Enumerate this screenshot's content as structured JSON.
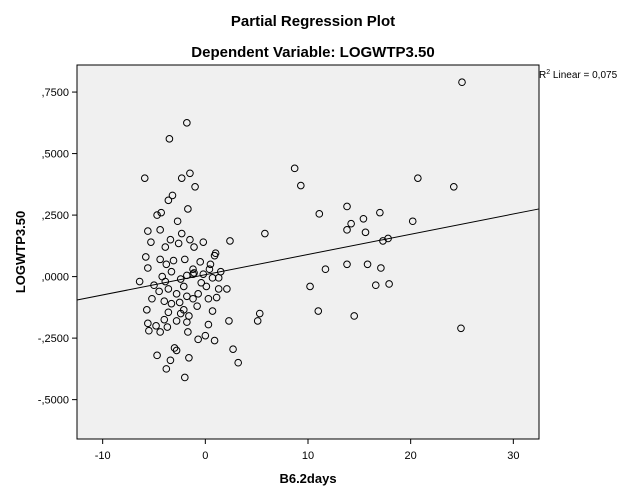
{
  "chart_data": {
    "type": "scatter",
    "title": "Partial Regression Plot",
    "subtitle": "Dependent Variable: LOGWTP3.50",
    "xlabel": "B6.2days",
    "ylabel": "LOGWTP3.50",
    "xlim": [
      -12.5,
      32.5
    ],
    "ylim": [
      -0.66,
      0.86
    ],
    "xticks": [
      -10,
      0,
      10,
      20,
      30
    ],
    "xtick_labels": [
      "-10",
      "0",
      "10",
      "20",
      "30"
    ],
    "yticks": [
      -0.5,
      -0.25,
      0,
      0.25,
      0.5,
      0.75
    ],
    "ytick_labels": [
      "-,5000",
      "-,2500",
      ",0000",
      ",2500",
      ",5000",
      ",7500"
    ],
    "fit_line": {
      "label_prefix": "R",
      "label_sup": "2",
      "label_text": " Linear = 0,075",
      "x": [
        -12.5,
        32.5
      ],
      "y": [
        -0.095,
        0.275
      ]
    },
    "points": [
      [
        25,
        0.79
      ],
      [
        -1.8,
        0.625
      ],
      [
        -3.5,
        0.56
      ],
      [
        20.7,
        0.4
      ],
      [
        24.2,
        0.365
      ],
      [
        8.7,
        0.44
      ],
      [
        9.3,
        0.37
      ],
      [
        -5.9,
        0.4
      ],
      [
        -2.3,
        0.4
      ],
      [
        -1.5,
        0.42
      ],
      [
        -1,
        0.365
      ],
      [
        -3.2,
        0.33
      ],
      [
        -3.6,
        0.31
      ],
      [
        -4.7,
        0.25
      ],
      [
        -1.7,
        0.275
      ],
      [
        13.8,
        0.285
      ],
      [
        11.1,
        0.255
      ],
      [
        15.4,
        0.235
      ],
      [
        17,
        0.26
      ],
      [
        20.2,
        0.225
      ],
      [
        -4.3,
        0.26
      ],
      [
        -2.7,
        0.225
      ],
      [
        -5.6,
        0.185
      ],
      [
        5.8,
        0.175
      ],
      [
        13.8,
        0.19
      ],
      [
        15.6,
        0.18
      ],
      [
        -4.4,
        0.19
      ],
      [
        -2.3,
        0.175
      ],
      [
        -3.4,
        0.15
      ],
      [
        -0.2,
        0.14
      ],
      [
        2.4,
        0.145
      ],
      [
        -5.3,
        0.14
      ],
      [
        17.8,
        0.155
      ],
      [
        17.3,
        0.145
      ],
      [
        14.2,
        0.215
      ],
      [
        -1.5,
        0.15
      ],
      [
        -2.6,
        0.135
      ],
      [
        -3.9,
        0.12
      ],
      [
        -1.1,
        0.12
      ],
      [
        0.9,
        0.085
      ],
      [
        -5.8,
        0.08
      ],
      [
        -4.4,
        0.07
      ],
      [
        -3.1,
        0.065
      ],
      [
        -2,
        0.07
      ],
      [
        -0.5,
        0.06
      ],
      [
        -3.8,
        0.05
      ],
      [
        -5.6,
        0.035
      ],
      [
        -1.2,
        0.03
      ],
      [
        0.4,
        0.03
      ],
      [
        1.5,
        0.02
      ],
      [
        -3.3,
        0.02
      ],
      [
        -4.2,
        0
      ],
      [
        -1.8,
        0.005
      ],
      [
        -0.2,
        0.01
      ],
      [
        0.5,
        0.05
      ],
      [
        -6.4,
        -0.02
      ],
      [
        -5,
        -0.035
      ],
      [
        -3.9,
        -0.02
      ],
      [
        -2.4,
        -0.01
      ],
      [
        -1.2,
        0.01
      ],
      [
        0.7,
        -0.005
      ],
      [
        1.3,
        -0.005
      ],
      [
        11.7,
        0.03
      ],
      [
        13.8,
        0.05
      ],
      [
        15.8,
        0.05
      ],
      [
        17.1,
        0.035
      ],
      [
        10.2,
        -0.04
      ],
      [
        16.6,
        -0.035
      ],
      [
        17.9,
        -0.03
      ],
      [
        -3.6,
        -0.05
      ],
      [
        -2.1,
        -0.04
      ],
      [
        0.1,
        -0.04
      ],
      [
        1.3,
        -0.05
      ],
      [
        2.1,
        -0.05
      ],
      [
        -4.5,
        -0.06
      ],
      [
        -2.8,
        -0.07
      ],
      [
        -1.8,
        -0.08
      ],
      [
        -0.7,
        -0.07
      ],
      [
        0.3,
        -0.09
      ],
      [
        -5.2,
        -0.09
      ],
      [
        -4,
        -0.1
      ],
      [
        -2.5,
        -0.105
      ],
      [
        -1.2,
        -0.09
      ],
      [
        1.1,
        -0.085
      ],
      [
        -3.3,
        -0.11
      ],
      [
        -0.8,
        -0.12
      ],
      [
        -5.7,
        -0.135
      ],
      [
        -3.6,
        -0.145
      ],
      [
        -2.4,
        -0.15
      ],
      [
        -1.6,
        -0.16
      ],
      [
        0.7,
        -0.14
      ],
      [
        5.3,
        -0.15
      ],
      [
        11,
        -0.14
      ],
      [
        -4,
        -0.175
      ],
      [
        -2.8,
        -0.18
      ],
      [
        -1.8,
        -0.185
      ],
      [
        2.3,
        -0.18
      ],
      [
        5.1,
        -0.18
      ],
      [
        14.5,
        -0.16
      ],
      [
        -5.6,
        -0.19
      ],
      [
        -4.8,
        -0.2
      ],
      [
        -3.7,
        -0.205
      ],
      [
        0.3,
        -0.195
      ],
      [
        -5.5,
        -0.22
      ],
      [
        -4.4,
        -0.225
      ],
      [
        -1.7,
        -0.225
      ],
      [
        0,
        -0.24
      ],
      [
        24.9,
        -0.21
      ],
      [
        -0.7,
        -0.255
      ],
      [
        0.9,
        -0.26
      ],
      [
        -3,
        -0.29
      ],
      [
        -2.8,
        -0.3
      ],
      [
        2.7,
        -0.295
      ],
      [
        -1.6,
        -0.33
      ],
      [
        -3.4,
        -0.34
      ],
      [
        3.2,
        -0.35
      ],
      [
        -3.8,
        -0.375
      ],
      [
        -2,
        -0.41
      ],
      [
        -4.7,
        -0.32
      ],
      [
        -1.1,
        0.015
      ],
      [
        -2.1,
        -0.135
      ],
      [
        -0.4,
        -0.025
      ],
      [
        1,
        0.095
      ]
    ]
  }
}
